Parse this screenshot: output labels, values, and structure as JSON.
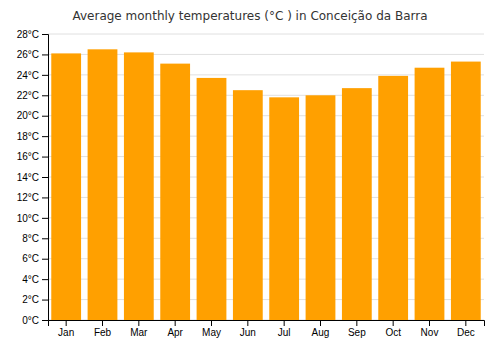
{
  "chart_data": {
    "type": "bar",
    "title": "Average monthly temperatures (°C ) in Conceição da Barra",
    "categories": [
      "Jan",
      "Feb",
      "Mar",
      "Apr",
      "May",
      "Jun",
      "Jul",
      "Aug",
      "Sep",
      "Oct",
      "Nov",
      "Dec"
    ],
    "values": [
      26.1,
      26.5,
      26.2,
      25.1,
      23.7,
      22.5,
      21.8,
      22.0,
      22.7,
      23.9,
      24.7,
      25.3
    ],
    "color": "#FFA000",
    "ylim": [
      0,
      28
    ],
    "yticks": [
      {
        "value": 0,
        "label": "0°C"
      },
      {
        "value": 2,
        "label": "2°C"
      },
      {
        "value": 4,
        "label": "4°C"
      },
      {
        "value": 6,
        "label": "6°C"
      },
      {
        "value": 8,
        "label": "8°C"
      },
      {
        "value": 10,
        "label": "10°C"
      },
      {
        "value": 12,
        "label": "12°C"
      },
      {
        "value": 14,
        "label": "14°C"
      },
      {
        "value": 16,
        "label": "16°C"
      },
      {
        "value": 18,
        "label": "18°C"
      },
      {
        "value": 20,
        "label": "20°C"
      },
      {
        "value": 22,
        "label": "22°C"
      },
      {
        "value": 24,
        "label": "24°C"
      },
      {
        "value": 26,
        "label": "26°C"
      },
      {
        "value": 28,
        "label": "28°C"
      }
    ],
    "grid": true
  }
}
